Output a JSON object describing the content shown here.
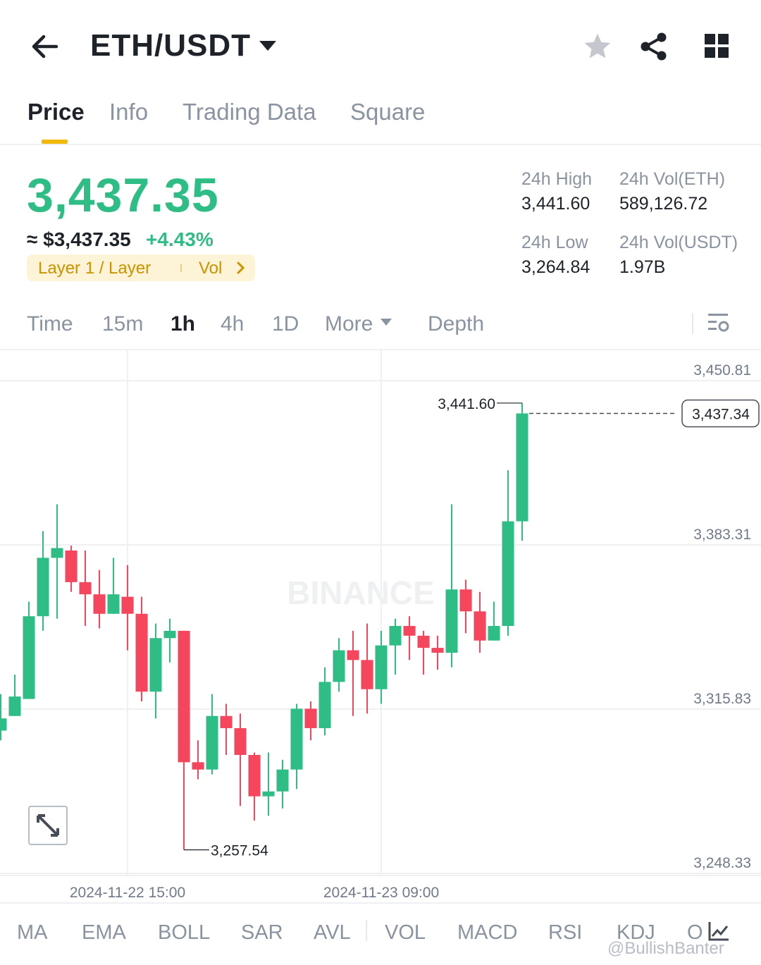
{
  "header": {
    "title": "ETH/USDT",
    "icons": {
      "back": "arrow-left-icon",
      "dropdown": "caret-down-icon",
      "favorite": "star-icon",
      "share": "share-icon",
      "more": "grid-icon"
    }
  },
  "tabs": [
    {
      "label": "Price",
      "active": true
    },
    {
      "label": "Info",
      "active": false
    },
    {
      "label": "Trading Data",
      "active": false
    },
    {
      "label": "Square",
      "active": false
    }
  ],
  "ticker": {
    "last_price": "3,437.35",
    "usd_price": "≈ $3,437.35",
    "change": "+4.43%",
    "tag": "Layer 1 / Layer",
    "tag_vol": "Vol",
    "high_label": "24h High",
    "high_value": "3,441.60",
    "low_label": "24h Low",
    "low_value": "3,264.84",
    "vol_eth_label": "24h Vol(ETH)",
    "vol_eth_value": "589,126.72",
    "vol_usdt_label": "24h Vol(USDT)",
    "vol_usdt_value": "1.97B"
  },
  "timeframes": [
    {
      "label": "Time",
      "active": false
    },
    {
      "label": "15m",
      "active": false
    },
    {
      "label": "1h",
      "active": true
    },
    {
      "label": "4h",
      "active": false
    },
    {
      "label": "1D",
      "active": false
    },
    {
      "label": "More",
      "active": false
    },
    {
      "label": "Depth",
      "active": false
    }
  ],
  "indicators": [
    "MA",
    "EMA",
    "BOLL",
    "SAR",
    "AVL",
    "VOL",
    "MACD",
    "RSI",
    "KDJ",
    "O"
  ],
  "colors": {
    "up": "#2ebd85",
    "down": "#f6465d",
    "accent": "#f0b90b"
  },
  "watermark": "@BullishBanter",
  "chart_data": {
    "type": "candlestick",
    "interval": "1h",
    "y_ticks": [
      "3,450.81",
      "3,383.31",
      "3,315.83",
      "3,248.33"
    ],
    "x_ticks": [
      "2024-11-22 15:00",
      "2024-11-23 09:00"
    ],
    "ylim": [
      3248.33,
      3450.81
    ],
    "last_price_label": "3,437.34",
    "high_marker": "3,441.60",
    "low_marker": "3,257.54",
    "candles": [
      [
        3307,
        3312,
        3303,
        3322
      ],
      [
        3313,
        3321,
        3313,
        3330
      ],
      [
        3320,
        3354,
        3320,
        3360
      ],
      [
        3354,
        3378,
        3348,
        3389
      ],
      [
        3378,
        3382,
        3353,
        3400
      ],
      [
        3381,
        3368,
        3364,
        3383
      ],
      [
        3368,
        3363,
        3350,
        3381
      ],
      [
        3363,
        3355,
        3349,
        3373
      ],
      [
        3355,
        3363,
        3355,
        3378
      ],
      [
        3362,
        3355,
        3340,
        3375
      ],
      [
        3355,
        3323,
        3319,
        3362
      ],
      [
        3323,
        3345,
        3312,
        3351
      ],
      [
        3345,
        3348,
        3335,
        3353
      ],
      [
        3348,
        3294,
        3258,
        3348
      ],
      [
        3294,
        3291,
        3287,
        3303
      ],
      [
        3291,
        3313,
        3289,
        3322
      ],
      [
        3313,
        3308,
        3297,
        3318
      ],
      [
        3308,
        3297,
        3276,
        3314
      ],
      [
        3297,
        3280,
        3270,
        3298
      ],
      [
        3280,
        3282,
        3272,
        3298
      ],
      [
        3282,
        3291,
        3275,
        3295
      ],
      [
        3291,
        3316,
        3283,
        3318
      ],
      [
        3316,
        3308,
        3303,
        3319
      ],
      [
        3308,
        3327,
        3305,
        3333
      ],
      [
        3327,
        3340,
        3323,
        3345
      ],
      [
        3340,
        3336,
        3313,
        3348
      ],
      [
        3336,
        3324,
        3314,
        3351
      ],
      [
        3324,
        3342,
        3318,
        3348
      ],
      [
        3342,
        3350,
        3330,
        3353
      ],
      [
        3350,
        3346,
        3336,
        3354
      ],
      [
        3346,
        3341,
        3330,
        3348
      ],
      [
        3341,
        3339,
        3332,
        3346
      ],
      [
        3339,
        3365,
        3333,
        3400
      ],
      [
        3365,
        3356,
        3347,
        3369
      ],
      [
        3356,
        3344,
        3339,
        3364
      ],
      [
        3344,
        3350,
        3344,
        3360
      ],
      [
        3350,
        3393,
        3346,
        3414
      ],
      [
        3393,
        3437.34,
        3385,
        3441.6
      ]
    ]
  }
}
